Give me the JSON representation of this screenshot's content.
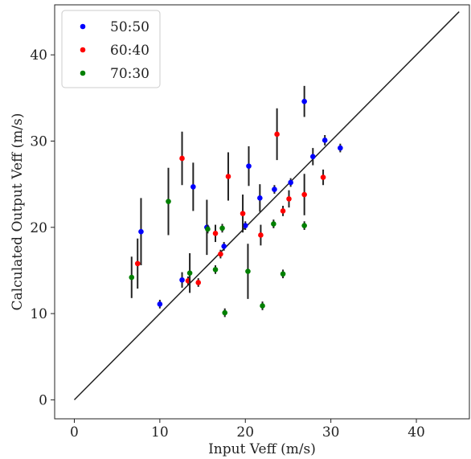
{
  "chart_data": {
    "type": "scatter",
    "xlabel": "Input Veff (m/s)",
    "ylabel": "Calculated Output Veff (m/s)",
    "xlim": [
      -2.3,
      46.2
    ],
    "ylim": [
      -2.2,
      45.8
    ],
    "xticks": [
      0,
      10,
      20,
      30,
      40
    ],
    "yticks": [
      0,
      10,
      20,
      30,
      40
    ],
    "legend_position": "top-left",
    "grid": false,
    "reference_line": {
      "x": [
        0,
        45
      ],
      "y": [
        0,
        45
      ],
      "color": "#222222"
    },
    "error_bar_color": "#222222",
    "series": [
      {
        "name": "50:50",
        "color": "#0000ff",
        "points": [
          {
            "x": 7.8,
            "y": 19.5,
            "err": 3.9
          },
          {
            "x": 10.0,
            "y": 11.1,
            "err": 0.5
          },
          {
            "x": 12.6,
            "y": 13.9,
            "err": 0.9
          },
          {
            "x": 13.9,
            "y": 24.7,
            "err": 2.8
          },
          {
            "x": 15.5,
            "y": 20.0,
            "err": 3.2
          },
          {
            "x": 17.5,
            "y": 17.8,
            "err": 0.5
          },
          {
            "x": 20.0,
            "y": 20.2,
            "err": 0.5
          },
          {
            "x": 20.4,
            "y": 27.1,
            "err": 2.3
          },
          {
            "x": 21.7,
            "y": 23.4,
            "err": 1.6
          },
          {
            "x": 23.4,
            "y": 24.4,
            "err": 0.5
          },
          {
            "x": 25.3,
            "y": 25.2,
            "err": 0.5
          },
          {
            "x": 26.9,
            "y": 34.6,
            "err": 1.8
          },
          {
            "x": 27.9,
            "y": 28.2,
            "err": 1.0
          },
          {
            "x": 29.3,
            "y": 30.1,
            "err": 0.6
          },
          {
            "x": 31.1,
            "y": 29.2,
            "err": 0.5
          }
        ]
      },
      {
        "name": "60:40",
        "color": "#ff0000",
        "points": [
          {
            "x": 7.4,
            "y": 15.8,
            "err": 2.9
          },
          {
            "x": 12.6,
            "y": 28.0,
            "err": 3.1
          },
          {
            "x": 13.3,
            "y": 13.8,
            "err": 0.5
          },
          {
            "x": 14.5,
            "y": 13.6,
            "err": 0.5
          },
          {
            "x": 16.5,
            "y": 19.3,
            "err": 1.0
          },
          {
            "x": 17.1,
            "y": 16.9,
            "err": 0.5
          },
          {
            "x": 18.0,
            "y": 25.9,
            "err": 2.8
          },
          {
            "x": 19.7,
            "y": 21.6,
            "err": 2.2
          },
          {
            "x": 21.8,
            "y": 19.1,
            "err": 1.2
          },
          {
            "x": 23.7,
            "y": 30.8,
            "err": 3.0
          },
          {
            "x": 24.4,
            "y": 21.9,
            "err": 0.6
          },
          {
            "x": 25.1,
            "y": 23.3,
            "err": 1.0
          },
          {
            "x": 26.9,
            "y": 23.8,
            "err": 2.4
          },
          {
            "x": 29.1,
            "y": 25.8,
            "err": 0.9
          }
        ]
      },
      {
        "name": "70:30",
        "color": "#008000",
        "points": [
          {
            "x": 6.7,
            "y": 14.2,
            "err": 2.4
          },
          {
            "x": 11.0,
            "y": 23.0,
            "err": 3.9
          },
          {
            "x": 13.5,
            "y": 14.7,
            "err": 2.3
          },
          {
            "x": 15.6,
            "y": 19.8,
            "err": 0.5
          },
          {
            "x": 16.5,
            "y": 15.1,
            "err": 0.5
          },
          {
            "x": 17.3,
            "y": 19.9,
            "err": 0.5
          },
          {
            "x": 17.6,
            "y": 10.1,
            "err": 0.5
          },
          {
            "x": 20.3,
            "y": 14.9,
            "err": 3.2
          },
          {
            "x": 22.0,
            "y": 10.9,
            "err": 0.5
          },
          {
            "x": 23.3,
            "y": 20.4,
            "err": 0.5
          },
          {
            "x": 24.4,
            "y": 14.6,
            "err": 0.5
          },
          {
            "x": 26.9,
            "y": 20.2,
            "err": 0.5
          }
        ]
      }
    ]
  }
}
